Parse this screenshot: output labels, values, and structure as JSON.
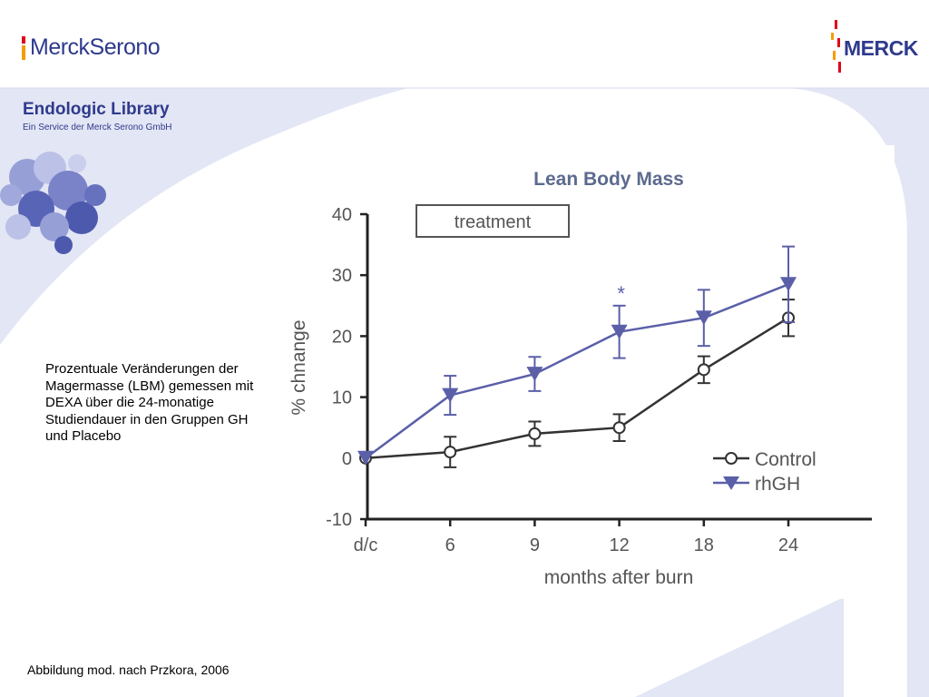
{
  "brand": {
    "left_logo_text": "MerckSerono",
    "right_logo_text": "MERCK",
    "accent_color": "#2e3a8c",
    "swoosh_color": "#dfe3f3",
    "logo_bar_colors": [
      "#e2001a",
      "#f59c00",
      "#2e3a8c"
    ]
  },
  "library": {
    "title": "Endologic Library",
    "subtitle": "Ein Service der Merck Serono GmbH",
    "image_icon": "protein-structure-icon"
  },
  "description": "Prozentuale Veränderungen der Magermasse (LBM) gemessen mit DEXA über die 24-monatige Studiendauer in den Gruppen GH und Placebo",
  "source": "Abbildung mod. nach Przkora, 2006",
  "chart_data": {
    "type": "line",
    "title": "Lean Body Mass",
    "annotation_box": "treatment",
    "significance_marker": "*",
    "significance_at": "12",
    "xlabel": "months after burn",
    "ylabel": "% chnange",
    "categories": [
      "d/c",
      "6",
      "9",
      "12",
      "18",
      "24"
    ],
    "yticks": [
      "40",
      "30",
      "20",
      "10",
      "0",
      "-10"
    ],
    "ylim": [
      -10,
      40
    ],
    "grid": false,
    "legend_position": "bottom-right",
    "series": [
      {
        "name": "Control",
        "marker": "open-circle",
        "color": "#333333",
        "values": [
          0,
          1,
          4,
          5,
          14.5,
          23
        ],
        "error": [
          0,
          2.5,
          2,
          2.2,
          2.2,
          3
        ]
      },
      {
        "name": "rhGH",
        "marker": "down-triangle",
        "color": "#5a5fa8",
        "values": [
          0,
          10.3,
          13.8,
          20.7,
          23,
          28.5
        ],
        "error": [
          0,
          3.2,
          2.8,
          4.3,
          4.6,
          6.2
        ]
      }
    ]
  }
}
